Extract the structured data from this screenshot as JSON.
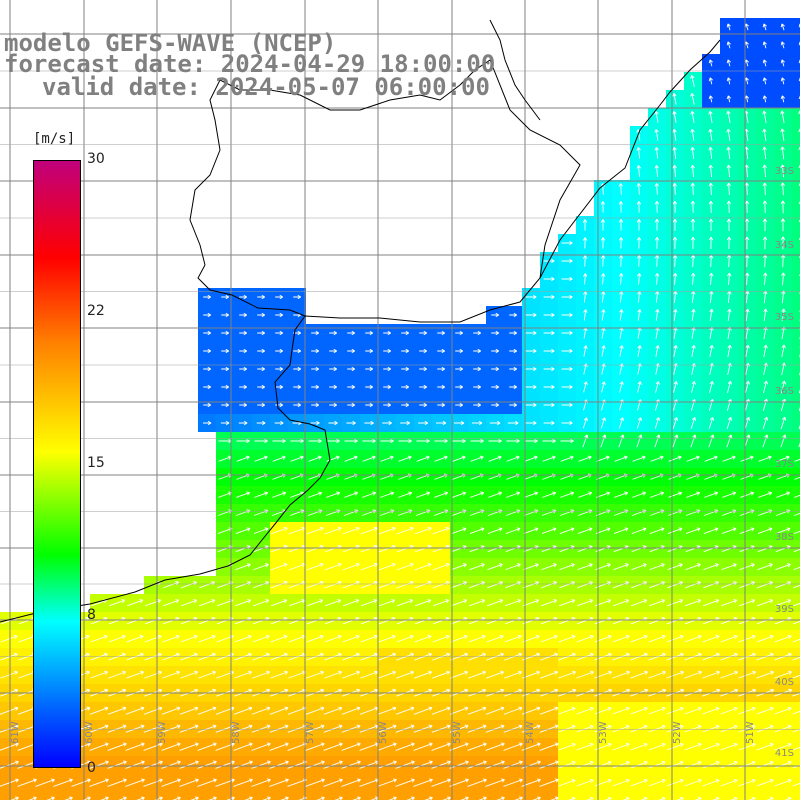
{
  "title": {
    "line1": "modelo GEFS-WAVE (NCEP)",
    "line2": "forecast date: 2024-04-29 18:00:00",
    "line3": "valid date: 2024-05-07 06:00:00"
  },
  "colorbar": {
    "unit": "[m/s]",
    "ticks": [
      "30",
      "22",
      "15",
      "8",
      "0"
    ],
    "colors": [
      "#c0007c",
      "#ff0000",
      "#ff8000",
      "#ffff00",
      "#00ff00",
      "#00ffff",
      "#0066ff",
      "#0000ff"
    ]
  },
  "lat_labels": [
    "33S",
    "34S",
    "35S",
    "36S",
    "37S",
    "38S",
    "39S",
    "40S",
    "41S"
  ],
  "lon_labels": [
    "61W",
    "60W",
    "59W",
    "58W",
    "57W",
    "56W",
    "55W",
    "54W",
    "53W",
    "52W",
    "51W"
  ],
  "colors": {
    "land": "#ffffff",
    "coast": "#000000",
    "grid": "#808080",
    "arrows": "#ffffff"
  }
}
